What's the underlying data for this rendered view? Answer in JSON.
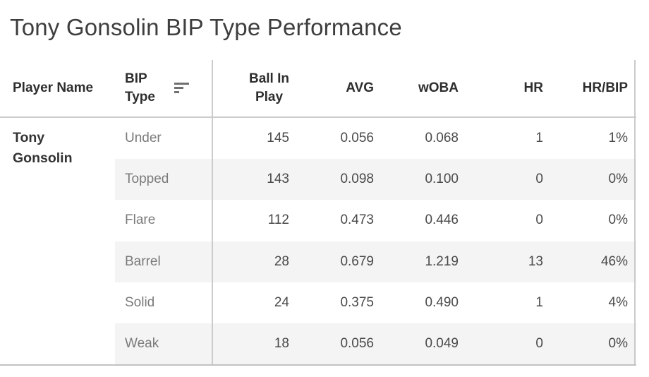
{
  "title": "Tony Gonsolin BIP Type Performance",
  "table": {
    "header": {
      "player_name": "Player Name",
      "bip_type": "BIP\nType",
      "sort_icon": "sort-descending-icon",
      "metrics": [
        "Ball In\nPlay",
        "AVG",
        "wOBA",
        "HR",
        "HR/BIP"
      ]
    },
    "player": "Tony Gonsolin",
    "rows": [
      {
        "bip_type": "Under",
        "ball_in_play": "145",
        "avg": "0.056",
        "woba": "0.068",
        "hr": "1",
        "hr_bip": "1%"
      },
      {
        "bip_type": "Topped",
        "ball_in_play": "143",
        "avg": "0.098",
        "woba": "0.100",
        "hr": "0",
        "hr_bip": "0%"
      },
      {
        "bip_type": "Flare",
        "ball_in_play": "112",
        "avg": "0.473",
        "woba": "0.446",
        "hr": "0",
        "hr_bip": "0%"
      },
      {
        "bip_type": "Barrel",
        "ball_in_play": "28",
        "avg": "0.679",
        "woba": "1.219",
        "hr": "13",
        "hr_bip": "46%"
      },
      {
        "bip_type": "Solid",
        "ball_in_play": "24",
        "avg": "0.375",
        "woba": "0.490",
        "hr": "1",
        "hr_bip": "4%"
      },
      {
        "bip_type": "Weak",
        "ball_in_play": "18",
        "avg": "0.056",
        "woba": "0.049",
        "hr": "0",
        "hr_bip": "0%"
      }
    ]
  },
  "chart_data": {
    "type": "table",
    "title": "Tony Gonsolin BIP Type Performance",
    "columns": [
      "Player Name",
      "BIP Type",
      "Ball In Play",
      "AVG",
      "wOBA",
      "HR",
      "HR/BIP"
    ],
    "rows": [
      [
        "Tony Gonsolin",
        "Under",
        145,
        0.056,
        0.068,
        1,
        "1%"
      ],
      [
        "Tony Gonsolin",
        "Topped",
        143,
        0.098,
        0.1,
        0,
        "0%"
      ],
      [
        "Tony Gonsolin",
        "Flare",
        112,
        0.473,
        0.446,
        0,
        "0%"
      ],
      [
        "Tony Gonsolin",
        "Barrel",
        28,
        0.679,
        1.219,
        13,
        "46%"
      ],
      [
        "Tony Gonsolin",
        "Solid",
        24,
        0.375,
        0.49,
        1,
        "4%"
      ],
      [
        "Tony Gonsolin",
        "Weak",
        18,
        0.056,
        0.049,
        0,
        "0%"
      ]
    ],
    "sort": "Ball In Play descending",
    "layout": {
      "striped_rows": [
        1,
        3,
        5
      ],
      "stripe_color": "#f4f4f4"
    }
  },
  "colors": {
    "title_text": "#3e3e3e",
    "header_text": "#2e2e2e",
    "player_text": "#333333",
    "dimension_text": "#7a7a7a",
    "value_text": "#4a4a4a",
    "stripe": "#f4f4f4",
    "grid_border": "#cbcbcb",
    "bottom_border": "#c2c2c2",
    "sort_icon": "#707070"
  }
}
